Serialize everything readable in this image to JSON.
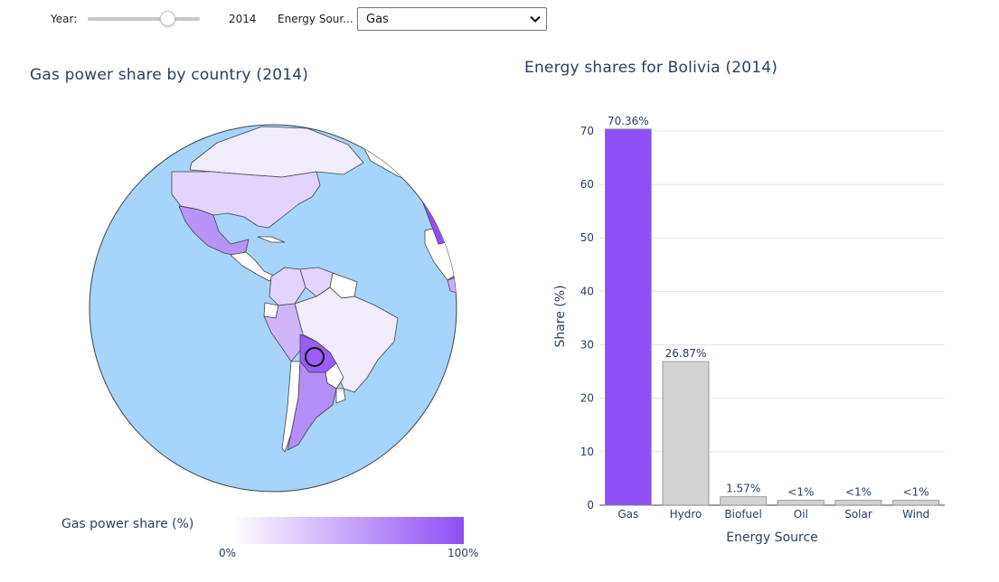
{
  "controls": {
    "year_label": "Year:",
    "year_value": "2014",
    "year_fraction": 0.71,
    "source_label": "Energy Sour...",
    "source_value": "Gas"
  },
  "map": {
    "title": "Gas power share by country (2014)",
    "colorbar_title": "Gas power share (%)",
    "colorbar_min": "0%",
    "colorbar_max": "100%",
    "ocean_color": "#a6d4fa",
    "scale_low": "#ffffff",
    "scale_high": "#8e4ff5",
    "selected_country": "Bolivia"
  },
  "chart_data": {
    "type": "bar",
    "title": "Energy shares for Bolivia (2014)",
    "xlabel": "Energy Source",
    "ylabel": "Share (%)",
    "categories": [
      "Gas",
      "Hydro",
      "Biofuel",
      "Oil",
      "Solar",
      "Wind"
    ],
    "values": [
      70.36,
      26.87,
      1.57,
      0.9,
      0.9,
      0.9
    ],
    "labels": [
      "70.36%",
      "26.87%",
      "1.57%",
      "<1%",
      "<1%",
      "<1%"
    ],
    "colors": [
      "#8e4ff5",
      "#d3d3d3",
      "#d3d3d3",
      "#d3d3d3",
      "#d3d3d3",
      "#d3d3d3"
    ],
    "ylim": [
      0,
      71
    ],
    "yticks": [
      0,
      10,
      20,
      30,
      40,
      50,
      60,
      70
    ],
    "grid": true
  }
}
